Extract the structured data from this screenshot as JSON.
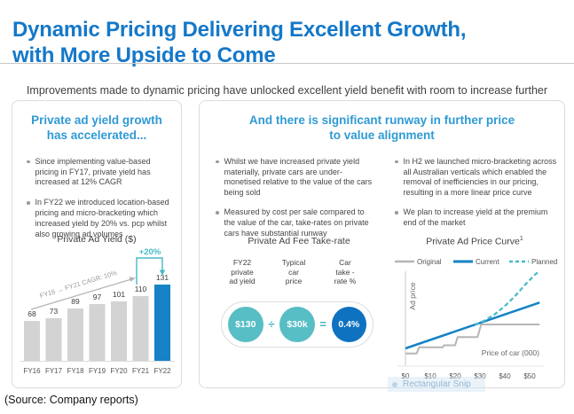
{
  "title": {
    "line1": "Dynamic Pricing Delivering Excellent Growth,",
    "line2": "with More Upside to Come"
  },
  "subtitle": "Improvements made to dynamic pricing have unlocked excellent yield benefit with room to increase further",
  "source": "(Source: Company reports)",
  "overlay": {
    "snip_text": "Rectangular Snip"
  },
  "colors": {
    "title_blue": "#1578c8",
    "heading_blue": "#2f9ad4",
    "accent_teal": "#45bac6",
    "bar_gray": "#d3d3d3",
    "bar_blue": "#1583c5",
    "circle_teal": "#58bec5",
    "circle_blue": "#0f72c0"
  },
  "left_panel": {
    "heading": {
      "line1": "Private ad yield growth",
      "line2": "has accelerated..."
    },
    "bullets": [
      "Since implementing value-based pricing in FY17, private yield has increased at 12% CAGR",
      "In FY22 we introduced location-based pricing and micro-bracketing which increased yield by 20% vs. pcp whilst also growing ad volumes"
    ]
  },
  "right_panel": {
    "heading": {
      "line1": "And there is significant runway in further price",
      "line2": "to value alignment"
    },
    "bullets_col1": [
      "Whilst we have increased private yield materially, private cars are under-monetised relative to the value of the cars being sold",
      "Measured by cost per sale compared to the value of the car, take-rates on private cars have substantial runway"
    ],
    "bullets_col2": [
      "In H2 we launched micro-bracketing across all Australian verticals which enabled the removal of inefficiencies in our pricing, resulting in a more linear price curve",
      "We plan to increase yield at the premium end of the market"
    ],
    "take_rate": {
      "title": "Private Ad Fee Take-rate",
      "columns": [
        {
          "lines": [
            "FY22",
            "private",
            "ad yield"
          ]
        },
        {
          "lines": [
            "Typical",
            "car",
            "price"
          ]
        },
        {
          "lines": [
            "Car",
            "take -",
            "rate %"
          ]
        }
      ],
      "values": [
        {
          "label": "$130",
          "color": "#58bec5"
        },
        {
          "label": "$30k",
          "color": "#58bec5"
        },
        {
          "label": "0.4%",
          "color": "#0f72c0"
        }
      ],
      "operators": [
        "÷",
        "="
      ]
    }
  },
  "chart_data": [
    {
      "type": "bar",
      "title": "Private Ad Yield ($)",
      "categories": [
        "FY16",
        "FY17",
        "FY18",
        "FY19",
        "FY20",
        "FY21",
        "FY22"
      ],
      "values": [
        68,
        73,
        89,
        97,
        101,
        110,
        131
      ],
      "highlight_index": 6,
      "bar_color": "#d3d3d3",
      "highlight_color": "#1583c5",
      "cagr_label": "FY16 → FY21 CAGR: 10%",
      "uplift_label": "+20%",
      "uplift_color": "#45bac6",
      "ylim": [
        0,
        140
      ],
      "grid": false
    },
    {
      "type": "line",
      "title": "Private Ad Price Curve",
      "title_superscript": "1",
      "xlabel": "Price of car (000)",
      "ylabel": "Ad price",
      "x_ticks": [
        "$0",
        "$10",
        "$20",
        "$30",
        "$40",
        "$50"
      ],
      "x_range": [
        0,
        54
      ],
      "y_units": "relative (axis unlabeled)",
      "legend_position": "top",
      "grid": false,
      "series": [
        {
          "name": "Original",
          "color": "#b5b5b5",
          "width": 2,
          "dash": "",
          "points": [
            [
              0,
              1.5
            ],
            [
              4.5,
              1.5
            ],
            [
              5.5,
              2.1
            ],
            [
              15,
              2.1
            ],
            [
              15.5,
              2.3
            ],
            [
              20,
              2.3
            ],
            [
              21,
              3.1
            ],
            [
              29,
              3.1
            ],
            [
              30.5,
              4.35
            ],
            [
              54,
              4.35
            ]
          ]
        },
        {
          "name": "Current",
          "color": "#1583c5",
          "width": 2.6,
          "dash": "",
          "points": [
            [
              0,
              2
            ],
            [
              54,
              6.5
            ]
          ]
        },
        {
          "name": "Planned",
          "color": "#45bac6",
          "width": 2.2,
          "dash": "5,3",
          "points": [
            [
              28,
              4.3
            ],
            [
              32,
              4.75
            ],
            [
              36,
              5.35
            ],
            [
              40,
              6.15
            ],
            [
              44,
              7.1
            ],
            [
              48,
              8.2
            ],
            [
              52,
              9.2
            ],
            [
              54,
              9.6
            ]
          ]
        }
      ]
    }
  ]
}
